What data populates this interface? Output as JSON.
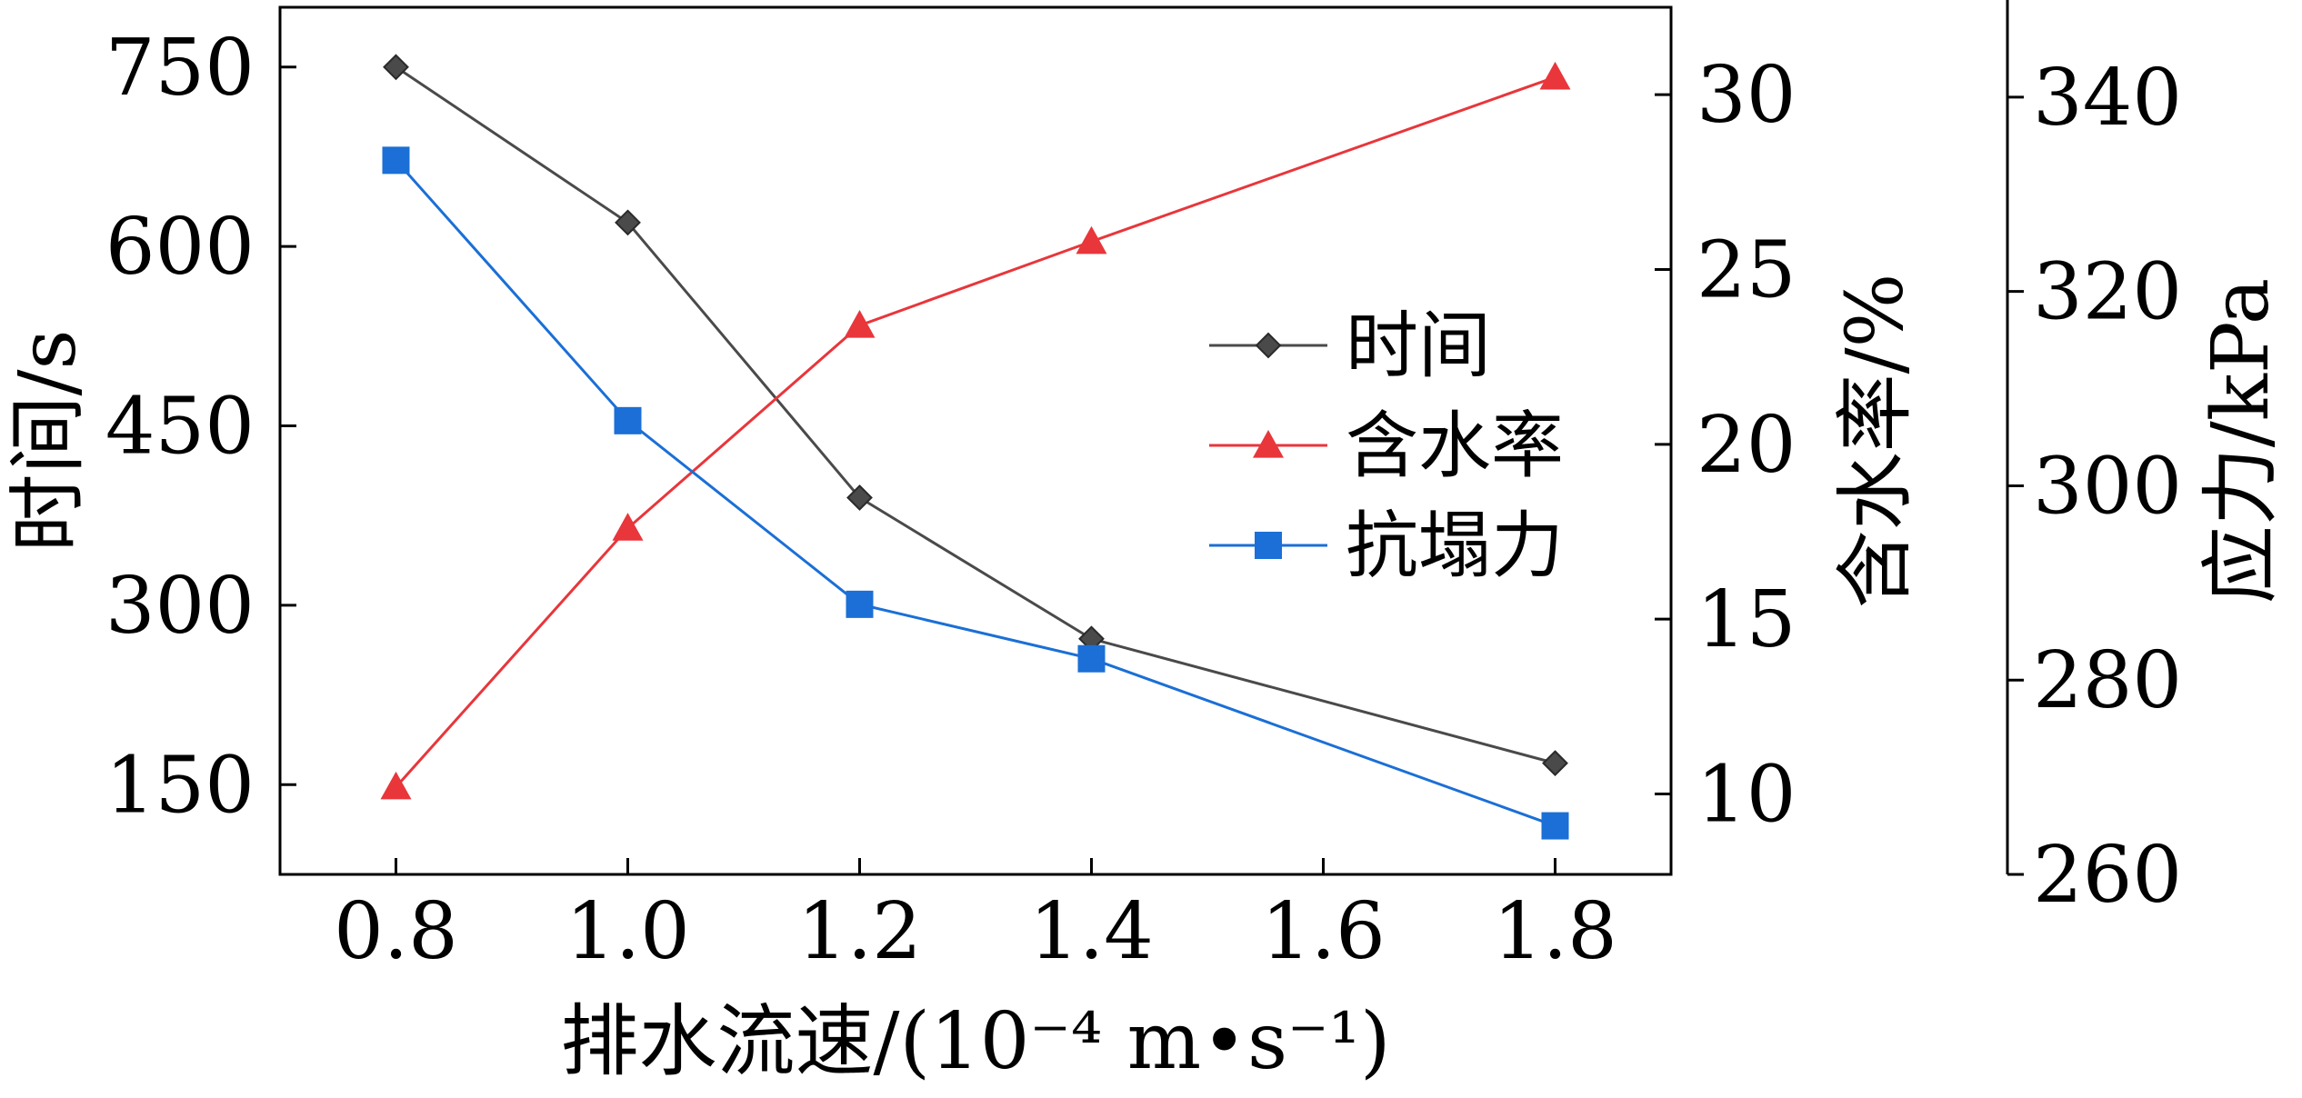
{
  "chart_data": {
    "type": "line",
    "x": [
      0.8,
      1.0,
      1.2,
      1.4,
      1.8
    ],
    "xlabel": "排水流速/(10⁻⁴ m•s⁻¹)",
    "xlim": [
      0.7,
      1.9
    ],
    "xticks": [
      "0.8",
      "1.0",
      "1.2",
      "1.4",
      "1.6",
      "1.8"
    ],
    "axes": [
      {
        "id": "left",
        "label": "时间/s",
        "range": [
          75,
          800
        ],
        "ticks": [
          150,
          300,
          450,
          600,
          750
        ]
      },
      {
        "id": "right1",
        "label": "含水率/%",
        "range": [
          7.7,
          32.5
        ],
        "ticks": [
          10,
          15,
          20,
          25,
          30
        ]
      },
      {
        "id": "right2",
        "label": "应力/kPa",
        "range": [
          260,
          350
        ],
        "ticks": [
          260,
          280,
          300,
          320,
          340
        ]
      }
    ],
    "series": [
      {
        "name": "时间",
        "axis": "left",
        "color": "#4a4a4a",
        "marker": "diamond",
        "values": [
          750,
          620,
          390,
          272,
          168
        ]
      },
      {
        "name": "含水率",
        "axis": "right1",
        "color": "#e8363b",
        "marker": "triangle",
        "values": [
          10.2,
          17.6,
          23.4,
          25.8,
          30.5
        ]
      },
      {
        "name": "抗塌力",
        "axis": "right2",
        "color": "#1b6fd6",
        "marker": "square",
        "values": [
          333.5,
          306.7,
          287.8,
          282.2,
          265.0
        ]
      }
    ],
    "legend": {
      "placement": "right-center"
    }
  }
}
